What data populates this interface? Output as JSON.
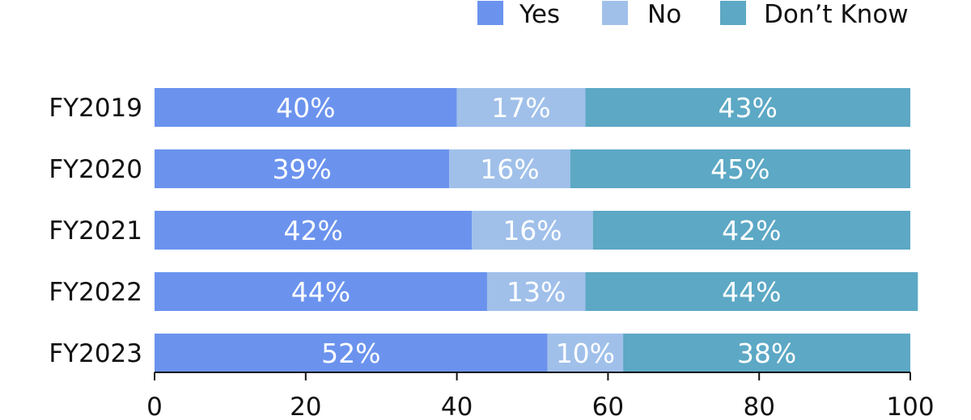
{
  "chart_data": {
    "type": "bar",
    "orientation": "horizontal",
    "stacked": true,
    "categories": [
      "FY2019",
      "FY2020",
      "FY2021",
      "FY2022",
      "FY2023"
    ],
    "series": [
      {
        "name": "Yes",
        "values": [
          40,
          39,
          42,
          44,
          52
        ],
        "color": "#6b93ee"
      },
      {
        "name": "No",
        "values": [
          17,
          16,
          16,
          13,
          10
        ],
        "color": "#a0c0ea"
      },
      {
        "name": "Don’t Know",
        "values": [
          43,
          45,
          42,
          44,
          38
        ],
        "color": "#5ca8c5"
      }
    ],
    "data_labels": [
      [
        "40%",
        "39%",
        "42%",
        "44%",
        "52%"
      ],
      [
        "17%",
        "16%",
        "16%",
        "13%",
        "10%"
      ],
      [
        "43%",
        "45%",
        "42%",
        "44%",
        "38%"
      ]
    ],
    "xlim": [
      0,
      100
    ],
    "xticks": [
      0,
      20,
      40,
      60,
      80,
      100
    ],
    "xtick_labels": [
      "0",
      "20",
      "40",
      "60",
      "80",
      "100"
    ],
    "legend_position": "top-right",
    "grid": false
  }
}
